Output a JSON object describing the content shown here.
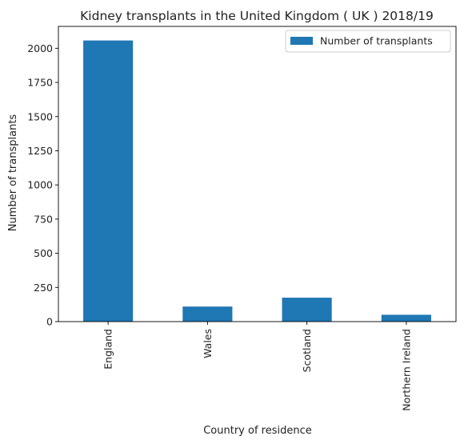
{
  "chart_data": {
    "type": "bar",
    "title": "Kidney transplants in the United Kingdom ( UK ) 2018/19",
    "xlabel": "Country of residence",
    "ylabel": "Number of transplants",
    "categories": [
      "England",
      "Wales",
      "Scotland",
      "Northern Ireland"
    ],
    "series": [
      {
        "name": "Number of transplants",
        "values": [
          2057,
          110,
          175,
          50
        ],
        "color": "#1f77b4"
      }
    ],
    "ylim": [
      0,
      2160
    ],
    "yticks": [
      0,
      250,
      500,
      750,
      1000,
      1250,
      1500,
      1750,
      2000
    ],
    "grid": false,
    "legend_position": "top-right"
  }
}
